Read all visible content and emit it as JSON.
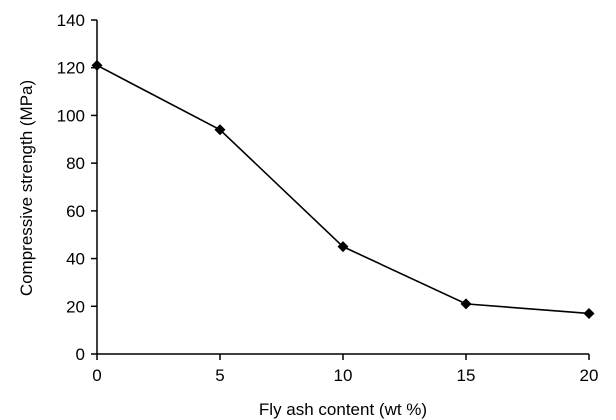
{
  "chart_data": {
    "type": "line",
    "title": "",
    "xlabel": "Fly ash content (wt %)",
    "ylabel": "Compressive strength (MPa)",
    "xlim": [
      0,
      20
    ],
    "ylim": [
      0,
      140
    ],
    "xticks": [
      0,
      5,
      10,
      15,
      20
    ],
    "yticks": [
      0,
      20,
      40,
      60,
      80,
      100,
      120,
      140
    ],
    "grid": false,
    "legend": "none",
    "series": [
      {
        "x": [
          0,
          5,
          10,
          15,
          20
        ],
        "y": [
          121,
          94,
          45,
          21,
          17
        ],
        "marker": "diamond",
        "color": "#000000"
      }
    ]
  }
}
